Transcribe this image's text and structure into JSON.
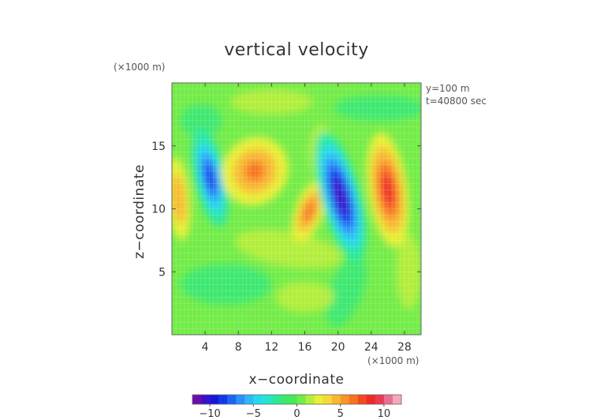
{
  "chart_data": {
    "type": "heatmap",
    "title": "vertical velocity",
    "xlabel": "x−coordinate",
    "ylabel": "z−coordinate",
    "x_unit": "(×1000 m)",
    "y_unit": "(×1000 m)",
    "annotations": [
      "y=100 m",
      "t=40800 sec"
    ],
    "xlim": [
      0,
      30
    ],
    "ylim": [
      0,
      20
    ],
    "x_ticks": [
      4,
      8,
      12,
      16,
      20,
      24,
      28
    ],
    "y_ticks": [
      5,
      10,
      15
    ],
    "x_tick_labels": [
      "4",
      "8",
      "12",
      "16",
      "20",
      "24",
      "28"
    ],
    "y_tick_labels": [
      "5",
      "10",
      "15"
    ],
    "grid": true,
    "colorbar": {
      "min": -12,
      "max": 12,
      "ticks": [
        -10,
        -5,
        0,
        5,
        10
      ],
      "tick_labels": [
        "−10",
        "−5",
        "0",
        "5",
        "10"
      ],
      "colors": [
        "#6a0ea8",
        "#3a10c8",
        "#1616d8",
        "#1438e8",
        "#1c64f4",
        "#2a90fa",
        "#2cb8fa",
        "#28d8f0",
        "#22e8d0",
        "#28e8a0",
        "#3ce870",
        "#44ea58",
        "#72ec46",
        "#b2ee3a",
        "#e8ef34",
        "#f8d838",
        "#f8b830",
        "#f89628",
        "#f87220",
        "#f54a1c",
        "#ee2a28",
        "#e83c54",
        "#ec6e90",
        "#f4a8c0"
      ]
    },
    "features": [
      {
        "name": "updraft-left-edge",
        "x": 0.8,
        "z": 10.8,
        "peak": 5
      },
      {
        "name": "downdraft-1",
        "x": 4.6,
        "z": 12.5,
        "peak": -8
      },
      {
        "name": "updraft-1",
        "x": 10.0,
        "z": 13.0,
        "peak": 6
      },
      {
        "name": "updraft-1b",
        "x": 16.5,
        "z": 9.8,
        "peak": 7
      },
      {
        "name": "downdraft-2",
        "x": 20.3,
        "z": 11.0,
        "peak": -11
      },
      {
        "name": "updraft-2",
        "x": 26.0,
        "z": 11.5,
        "peak": 9
      }
    ]
  }
}
